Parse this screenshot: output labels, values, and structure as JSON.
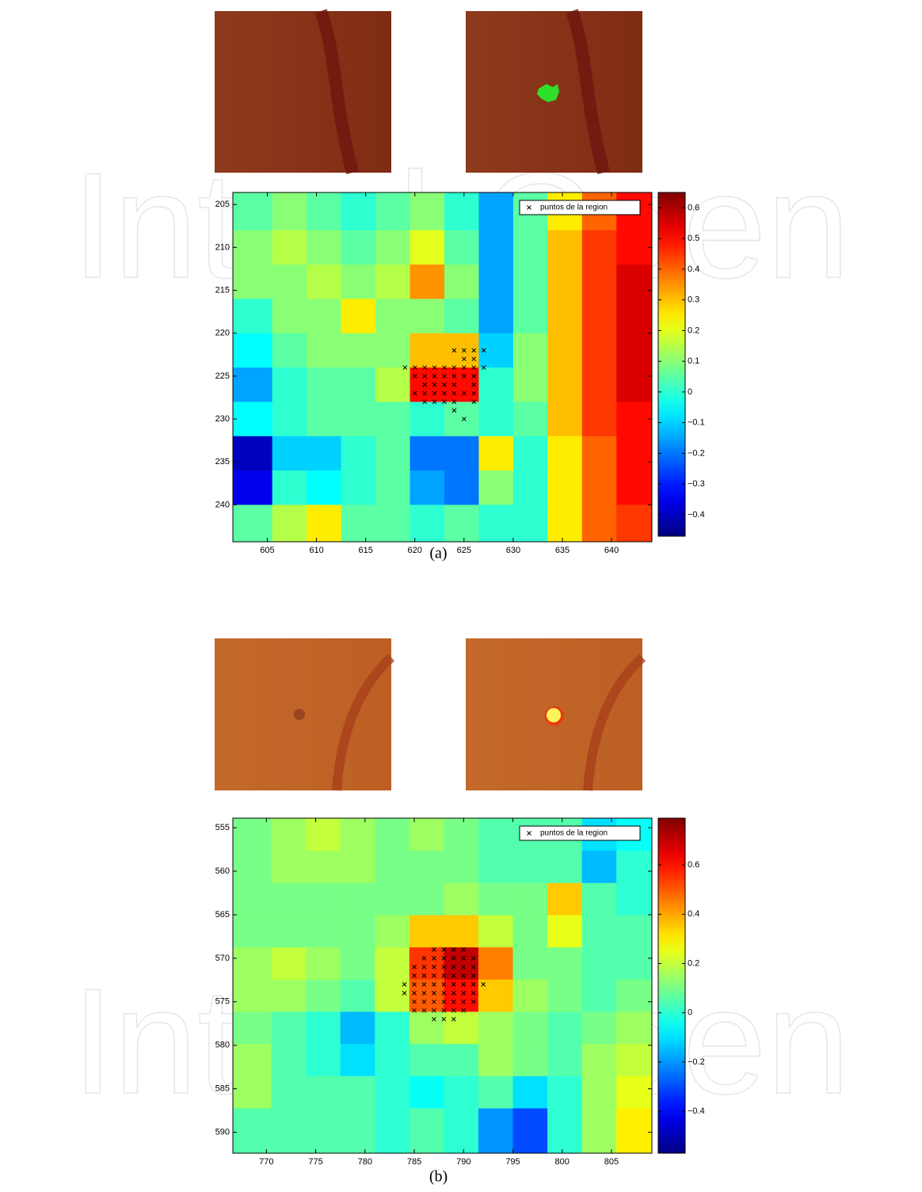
{
  "watermark": "IntechOpen",
  "chart_data": [
    {
      "type": "heatmap",
      "caption": "(a)",
      "legend": "upper right",
      "xlim": [
        601.5,
        644.1
      ],
      "ylim": [
        203.6,
        244.3
      ],
      "xticks": [
        605,
        610,
        615,
        620,
        625,
        630,
        635,
        640
      ],
      "yticks": [
        205,
        210,
        215,
        220,
        225,
        230,
        235,
        240
      ],
      "clim": [
        -0.47,
        0.65
      ],
      "cticks": [
        {
          "value": -0.4,
          "label": "−0.4"
        },
        {
          "value": -0.3,
          "label": "−0.3"
        },
        {
          "value": -0.2,
          "label": "−0.2"
        },
        {
          "value": -0.1,
          "label": "−0.1"
        },
        0,
        0.1,
        0.2,
        0.3,
        0.4,
        0.5,
        0.6
      ],
      "heatmap": {
        "x": [
          603.75,
          607.25,
          610.75,
          614.25,
          617.75,
          621.25,
          624.75,
          628.25,
          631.75,
          635.25,
          638.75,
          642.25
        ],
        "y": [
          206,
          210,
          214,
          218,
          222,
          226,
          230,
          234,
          238,
          242
        ],
        "z": [
          [
            0.05,
            0.1,
            0.05,
            0.0,
            0.05,
            0.1,
            0.0,
            -0.15,
            0.05,
            0.25,
            0.4,
            0.5
          ],
          [
            0.1,
            0.15,
            0.1,
            0.05,
            0.1,
            0.2,
            0.05,
            -0.15,
            0.05,
            0.3,
            0.45,
            0.5
          ],
          [
            0.1,
            0.1,
            0.15,
            0.1,
            0.15,
            0.35,
            0.1,
            -0.15,
            0.05,
            0.3,
            0.45,
            0.55
          ],
          [
            0.0,
            0.1,
            0.1,
            0.25,
            0.1,
            0.1,
            0.05,
            -0.15,
            0.05,
            0.3,
            0.45,
            0.55
          ],
          [
            -0.05,
            0.05,
            0.1,
            0.1,
            0.1,
            0.3,
            0.3,
            -0.1,
            0.1,
            0.3,
            0.45,
            0.55
          ],
          [
            -0.15,
            0.0,
            0.05,
            0.05,
            0.15,
            0.5,
            0.5,
            0.0,
            0.1,
            0.3,
            0.45,
            0.55
          ],
          [
            -0.05,
            0.0,
            0.05,
            0.05,
            0.05,
            0.0,
            0.05,
            0.0,
            0.05,
            0.3,
            0.45,
            0.5
          ],
          [
            -0.4,
            -0.1,
            -0.1,
            0.0,
            0.05,
            -0.2,
            -0.2,
            0.25,
            0.0,
            0.25,
            0.4,
            0.5
          ],
          [
            -0.35,
            0.0,
            -0.05,
            0.0,
            0.05,
            -0.15,
            -0.2,
            0.1,
            0.0,
            0.25,
            0.4,
            0.5
          ],
          [
            0.05,
            0.15,
            0.25,
            0.05,
            0.05,
            0.0,
            0.05,
            0.0,
            0.0,
            0.25,
            0.4,
            0.45
          ]
        ]
      },
      "series": [
        {
          "name": "puntos de la region",
          "color": "#000000",
          "x": [
            624,
            625,
            626,
            627,
            625,
            626,
            619,
            620,
            621,
            622,
            623,
            624,
            625,
            626,
            627,
            620,
            621,
            622,
            623,
            624,
            625,
            626,
            621,
            622,
            623,
            624,
            626,
            620,
            621,
            622,
            623,
            624,
            625,
            626,
            621,
            622,
            623,
            624,
            626,
            624,
            625
          ],
          "y": [
            222,
            222,
            222,
            222,
            223,
            223,
            224,
            224,
            224,
            224,
            224,
            224,
            224,
            224,
            224,
            225,
            225,
            225,
            225,
            225,
            225,
            225,
            226,
            226,
            226,
            226,
            226,
            227,
            227,
            227,
            227,
            227,
            227,
            227,
            228,
            228,
            228,
            228,
            228,
            229,
            230
          ]
        }
      ]
    },
    {
      "type": "heatmap",
      "caption": "(b)",
      "legend": "upper right",
      "xlim": [
        766.6,
        809.1
      ],
      "ylim": [
        553.9,
        592.4
      ],
      "xticks": [
        770,
        775,
        780,
        785,
        790,
        795,
        800,
        805
      ],
      "yticks": [
        555,
        560,
        565,
        570,
        575,
        580,
        585,
        590
      ],
      "clim": [
        -0.57,
        0.79
      ],
      "cticks": [
        {
          "value": -0.4,
          "label": "−0.4"
        },
        {
          "value": -0.2,
          "label": "−0.2"
        },
        0,
        0.2,
        0.4,
        0.6
      ],
      "heatmap": {
        "x": [
          768.75,
          772.25,
          775.75,
          779.25,
          782.75,
          786.25,
          789.75,
          793.25,
          796.75,
          800.25,
          803.75,
          807.25
        ],
        "y": [
          555.8,
          559.5,
          563.2,
          566.9,
          570.6,
          574.3,
          578,
          581.7,
          585.4,
          589.1
        ],
        "z": [
          [
            0.1,
            0.15,
            0.2,
            0.15,
            0.1,
            0.15,
            0.1,
            0.05,
            0.05,
            0.05,
            -0.1,
            -0.05
          ],
          [
            0.1,
            0.15,
            0.15,
            0.15,
            0.1,
            0.1,
            0.1,
            0.05,
            0.05,
            0.05,
            -0.15,
            0.0
          ],
          [
            0.1,
            0.1,
            0.1,
            0.1,
            0.1,
            0.1,
            0.15,
            0.1,
            0.1,
            0.35,
            0.05,
            0.0
          ],
          [
            0.1,
            0.1,
            0.1,
            0.1,
            0.15,
            0.35,
            0.35,
            0.2,
            0.1,
            0.25,
            0.05,
            0.05
          ],
          [
            0.15,
            0.2,
            0.15,
            0.1,
            0.2,
            0.55,
            0.7,
            0.45,
            0.1,
            0.1,
            0.05,
            0.05
          ],
          [
            0.15,
            0.15,
            0.1,
            0.05,
            0.2,
            0.5,
            0.6,
            0.35,
            0.15,
            0.1,
            0.05,
            0.1
          ],
          [
            0.1,
            0.05,
            0.0,
            -0.15,
            0.0,
            0.15,
            0.2,
            0.15,
            0.1,
            0.05,
            0.1,
            0.15
          ],
          [
            0.15,
            0.05,
            0.0,
            -0.1,
            0.0,
            0.05,
            0.05,
            0.15,
            0.1,
            0.05,
            0.15,
            0.2
          ],
          [
            0.15,
            0.05,
            0.05,
            0.05,
            0.0,
            -0.05,
            0.0,
            0.05,
            -0.1,
            0.0,
            0.15,
            0.25
          ],
          [
            0.05,
            0.05,
            0.05,
            0.05,
            0.0,
            0.05,
            0.0,
            -0.2,
            -0.3,
            0.0,
            0.15,
            0.3
          ]
        ]
      },
      "series": [
        {
          "name": "puntos de la region",
          "color": "#000000",
          "x": [
            787,
            788,
            789,
            790,
            786,
            787,
            788,
            789,
            790,
            791,
            785,
            786,
            787,
            788,
            789,
            790,
            791,
            785,
            786,
            787,
            788,
            789,
            790,
            791,
            784,
            785,
            786,
            787,
            788,
            789,
            790,
            791,
            792,
            784,
            785,
            786,
            787,
            788,
            789,
            790,
            791,
            785,
            786,
            787,
            788,
            789,
            790,
            791,
            785,
            786,
            787,
            788,
            789,
            790,
            787,
            788,
            789
          ],
          "y": [
            569,
            569,
            569,
            569,
            570,
            570,
            570,
            570,
            570,
            570,
            571,
            571,
            571,
            571,
            571,
            571,
            571,
            572,
            572,
            572,
            572,
            572,
            572,
            572,
            573,
            573,
            573,
            573,
            573,
            573,
            573,
            573,
            573,
            574,
            574,
            574,
            574,
            574,
            574,
            574,
            574,
            575,
            575,
            575,
            575,
            575,
            575,
            575,
            576,
            576,
            576,
            576,
            576,
            576,
            577,
            577,
            577
          ]
        }
      ]
    }
  ]
}
